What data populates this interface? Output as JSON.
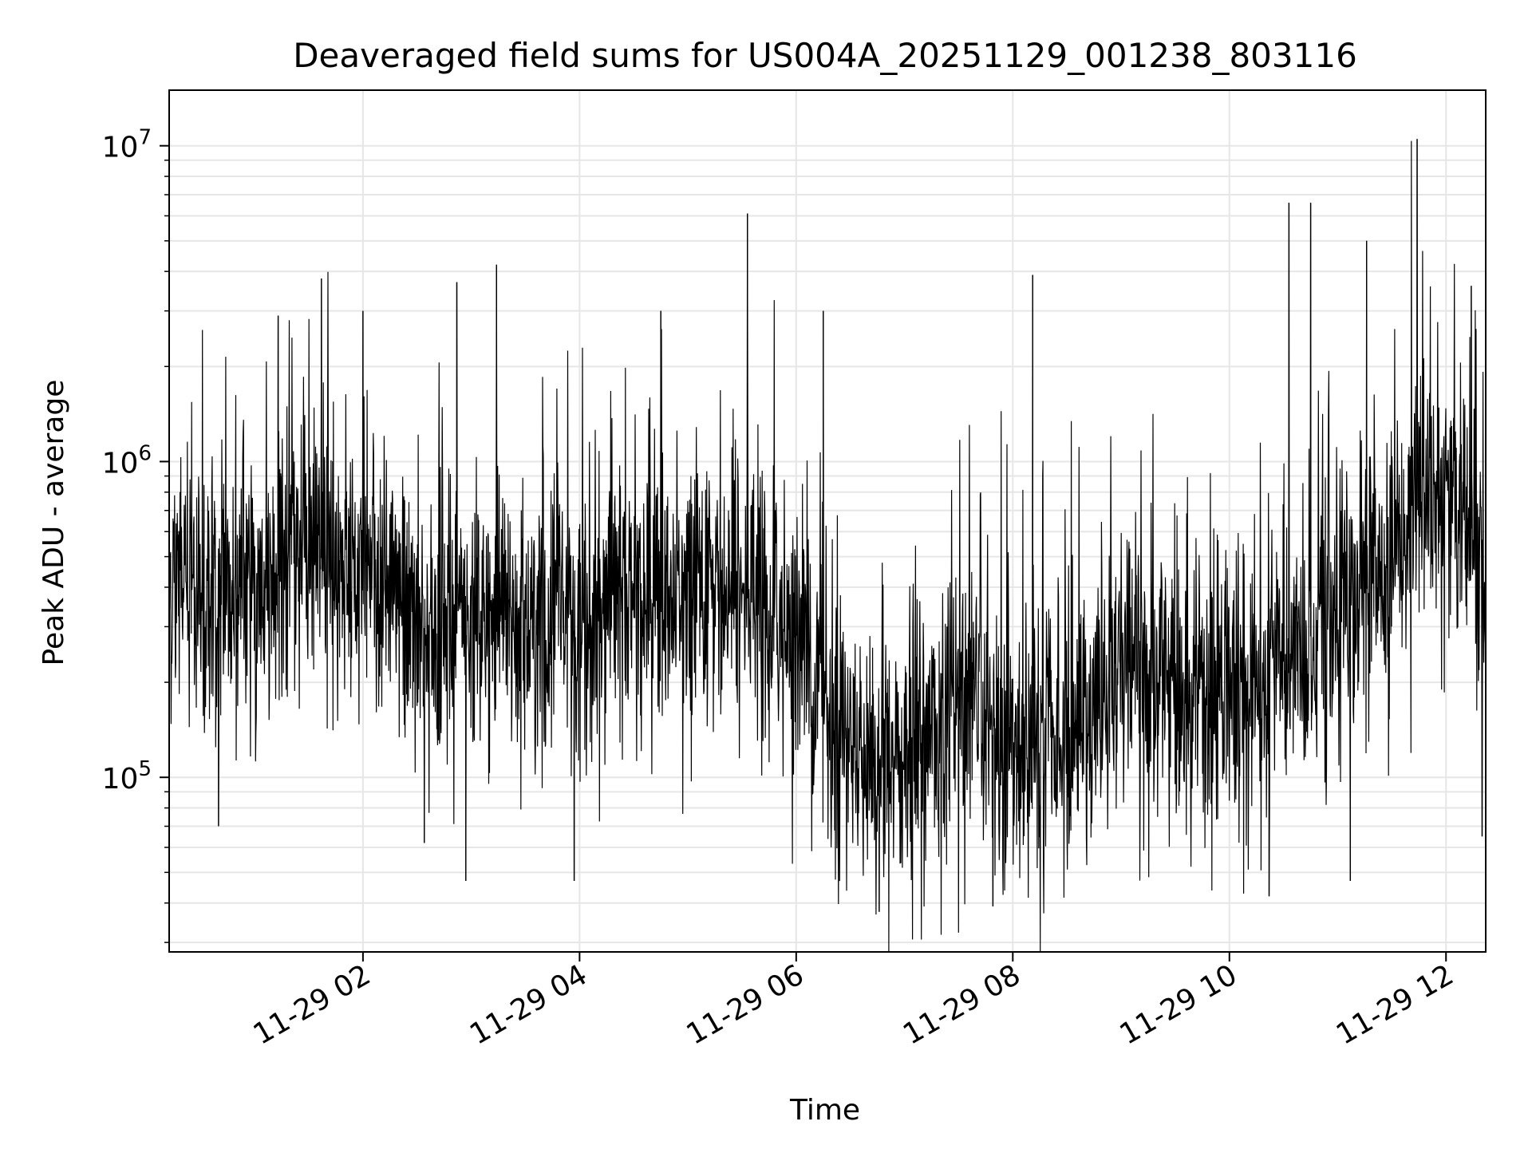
{
  "chart_data": {
    "type": "line",
    "title": "Deaveraged field sums for US004A_20251129_001238_803116",
    "xlabel": "Time",
    "ylabel": "Peak ADU - average",
    "yscale": "log",
    "xlim": [
      "2025-11-29T00:12:38",
      "2025-11-29T12:22:00"
    ],
    "ylim": [
      28000,
      15000000
    ],
    "x_ticks": [
      "11-29 02",
      "11-29 04",
      "11-29 06",
      "11-29 08",
      "11-29 10",
      "11-29 12"
    ],
    "y_ticks": [
      {
        "base": "10",
        "exp": "5"
      },
      {
        "base": "10",
        "exp": "6"
      },
      {
        "base": "10",
        "exp": "7"
      }
    ],
    "grid": true,
    "line_color": "#000000",
    "series": [
      {
        "description_note": "",
        "baseline": [
          {
            "x": "2025-11-29T00:12:38",
            "y": 420000
          },
          {
            "x": "2025-11-29T01:00:00",
            "y": 380000
          },
          {
            "x": "2025-11-29T01:30:00",
            "y": 520000
          },
          {
            "x": "2025-11-29T02:00:00",
            "y": 420000
          },
          {
            "x": "2025-11-29T02:30:00",
            "y": 300000
          },
          {
            "x": "2025-11-29T03:00:00",
            "y": 280000
          },
          {
            "x": "2025-11-29T03:30:00",
            "y": 300000
          },
          {
            "x": "2025-11-29T04:00:00",
            "y": 290000
          },
          {
            "x": "2025-11-29T04:30:00",
            "y": 380000
          },
          {
            "x": "2025-11-29T05:00:00",
            "y": 330000
          },
          {
            "x": "2025-11-29T05:30:00",
            "y": 380000
          },
          {
            "x": "2025-11-29T06:00:00",
            "y": 280000
          },
          {
            "x": "2025-11-29T06:30:00",
            "y": 120000
          },
          {
            "x": "2025-11-29T07:00:00",
            "y": 110000
          },
          {
            "x": "2025-11-29T07:30:00",
            "y": 170000
          },
          {
            "x": "2025-11-29T08:00:00",
            "y": 120000
          },
          {
            "x": "2025-11-29T08:30:00",
            "y": 130000
          },
          {
            "x": "2025-11-29T09:00:00",
            "y": 230000
          },
          {
            "x": "2025-11-29T09:30:00",
            "y": 200000
          },
          {
            "x": "2025-11-29T10:00:00",
            "y": 180000
          },
          {
            "x": "2025-11-29T10:30:00",
            "y": 230000
          },
          {
            "x": "2025-11-29T11:00:00",
            "y": 340000
          },
          {
            "x": "2025-11-29T11:30:00",
            "y": 450000
          },
          {
            "x": "2025-11-29T11:50:00",
            "y": 850000
          },
          {
            "x": "2025-11-29T12:22:00",
            "y": 550000
          }
        ],
        "spikes": [
          {
            "x": "2025-11-29T01:13:00",
            "y": 2900000
          },
          {
            "x": "2025-11-29T01:37:00",
            "y": 3800000
          },
          {
            "x": "2025-11-29T02:00:00",
            "y": 3000000
          },
          {
            "x": "2025-11-29T02:52:00",
            "y": 3700000
          },
          {
            "x": "2025-11-29T03:14:00",
            "y": 4200000
          },
          {
            "x": "2025-11-29T04:45:00",
            "y": 3000000
          },
          {
            "x": "2025-11-29T05:33:00",
            "y": 6100000
          },
          {
            "x": "2025-11-29T06:15:00",
            "y": 3000000
          },
          {
            "x": "2025-11-29T08:11:00",
            "y": 3900000
          },
          {
            "x": "2025-11-29T10:33:00",
            "y": 6600000
          },
          {
            "x": "2025-11-29T10:45:00",
            "y": 6600000
          },
          {
            "x": "2025-11-29T11:16:00",
            "y": 5000000
          },
          {
            "x": "2025-11-29T11:44:00",
            "y": 10500000
          },
          {
            "x": "2025-11-29T12:14:00",
            "y": 3600000
          }
        ],
        "dips": [
          {
            "x": "2025-11-29T00:40:00",
            "y": 70000
          },
          {
            "x": "2025-11-29T02:34:00",
            "y": 62000
          },
          {
            "x": "2025-11-29T02:57:00",
            "y": 47000
          },
          {
            "x": "2025-11-29T03:57:00",
            "y": 47000
          },
          {
            "x": "2025-11-29T06:46:00",
            "y": 37500
          },
          {
            "x": "2025-11-29T07:49:00",
            "y": 39000
          },
          {
            "x": "2025-11-29T10:22:00",
            "y": 42000
          },
          {
            "x": "2025-11-29T11:07:00",
            "y": 47000
          },
          {
            "x": "2025-11-29T12:20:00",
            "y": 65000
          }
        ]
      }
    ]
  }
}
